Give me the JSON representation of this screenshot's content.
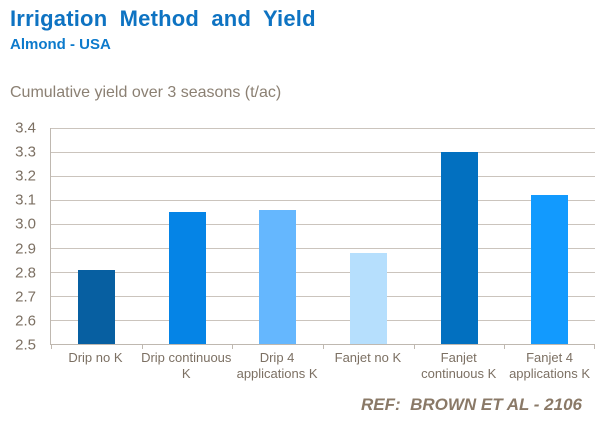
{
  "header": {
    "title": "Irrigation Method and Yield",
    "subtitle": "Almond - USA"
  },
  "footer": {
    "ref_label": "REF:  BROWN ET AL - 2106"
  },
  "chart_data": {
    "type": "bar",
    "title": "Cumulative yield over 3 seasons (t/ac)",
    "xlabel": "",
    "ylabel": "",
    "categories": [
      "Drip no K",
      "Drip continuous K",
      "Drip 4 applications K",
      "Fanjet no K",
      "Fanjet continuous K",
      "Fanjet 4 applications K"
    ],
    "category_lines": [
      [
        "Drip no K"
      ],
      [
        "Drip continuous",
        "K"
      ],
      [
        "Drip 4",
        "applications K"
      ],
      [
        "Fanjet no K"
      ],
      [
        "Fanjet",
        "continuous K"
      ],
      [
        "Fanjet 4",
        "applications K"
      ]
    ],
    "values": [
      2.81,
      3.05,
      3.06,
      2.88,
      3.3,
      3.12
    ],
    "bar_colors": [
      "#075FA1",
      "#0584E6",
      "#65B7FE",
      "#B6DFFD",
      "#0270C0",
      "#129AFE"
    ],
    "ylim": [
      2.5,
      3.4
    ],
    "yticks": [
      2.5,
      2.6,
      2.7,
      2.8,
      2.9,
      3.0,
      3.1,
      3.2,
      3.3,
      3.4
    ],
    "grid": true,
    "legend": false
  },
  "colors": {
    "title": "#0E73C2",
    "subtitle": "#0C7ACC",
    "chart_label": "#8B8073",
    "axis_line": "#BFB8B0",
    "gridline": "#CBC4BD",
    "tick_label": "#7C7063",
    "footer": "#8A7967",
    "background": "#FFFFFF"
  }
}
